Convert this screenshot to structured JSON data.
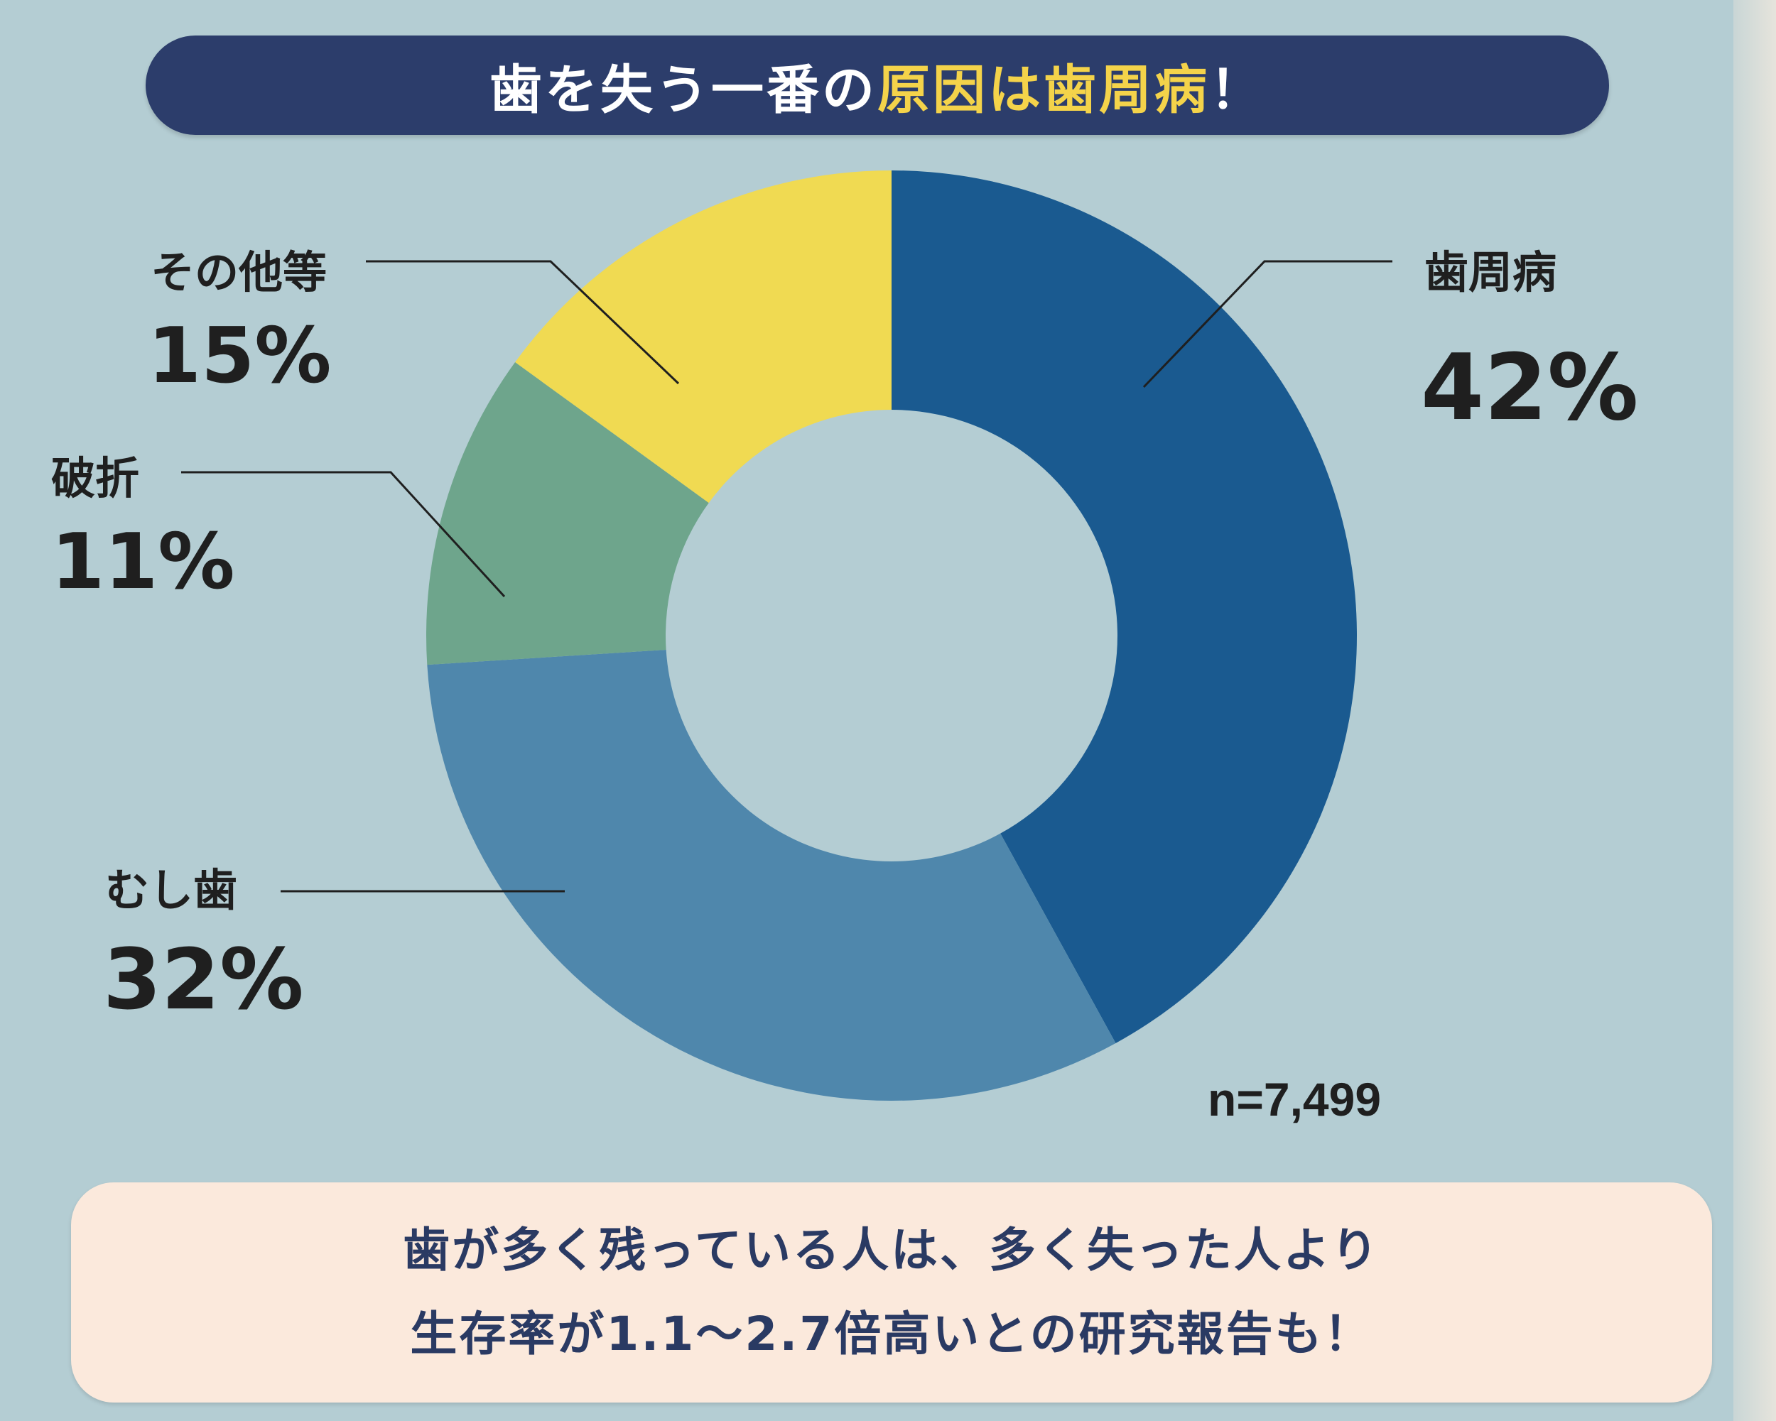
{
  "title": {
    "part1": "歯を失う一番の",
    "highlight": "原因は歯周病",
    "part2": "！"
  },
  "chart_data": {
    "type": "pie",
    "categories": [
      "歯周病",
      "むし歯",
      "破折",
      "その他等"
    ],
    "values": [
      42,
      32,
      11,
      15
    ],
    "value_labels": [
      "42%",
      "32%",
      "11%",
      "15%"
    ],
    "colors": [
      "#1a5a90",
      "#4f87ac",
      "#6ea58c",
      "#f0da52"
    ],
    "donut": true,
    "sample_size": "n=7,499"
  },
  "footer": {
    "line1": "歯が多く残っている人は、多く失った人より",
    "line2": "生存率が1.1〜2.7倍高いとの研究報告も！"
  }
}
